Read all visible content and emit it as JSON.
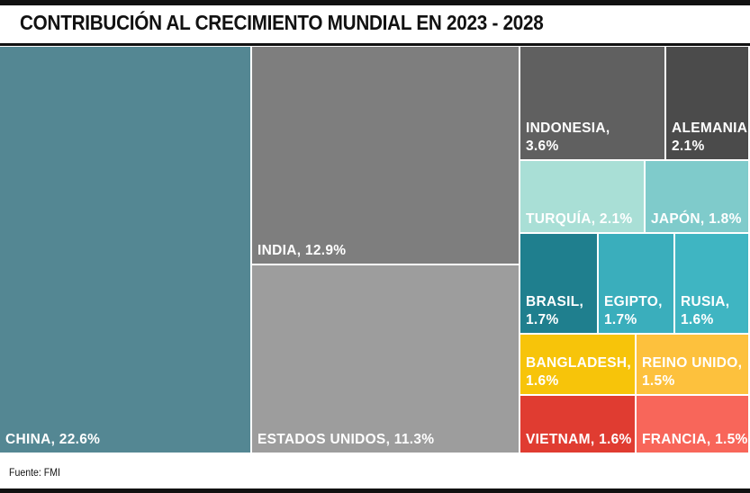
{
  "title": "CONTRIBUCIÓN AL CRECIMIENTO MUNDIAL EN 2023 - 2028",
  "source": "Fuente: FMI",
  "chart_data": {
    "type": "treemap",
    "title": "CONTRIBUCIÓN AL CRECIMIENTO MUNDIAL EN 2023 - 2028",
    "unit": "%",
    "items": [
      {
        "name": "CHINA",
        "value": 22.6,
        "label": "22.6%",
        "color": "#548793"
      },
      {
        "name": "INDIA",
        "value": 12.9,
        "label": "12.9%",
        "color": "#7e7e7e"
      },
      {
        "name": "ESTADOS UNIDOS",
        "value": 11.3,
        "label": "11.3%",
        "color": "#9d9d9d"
      },
      {
        "name": "INDONESIA",
        "value": 3.6,
        "label": "3.6%",
        "color": "#606060"
      },
      {
        "name": "ALEMANIA",
        "value": 2.1,
        "label": "2.1%",
        "color": "#4b4b4b"
      },
      {
        "name": "TURQUÍA",
        "value": 2.1,
        "label": "2.1%",
        "color": "#a9dfd6"
      },
      {
        "name": "JAPÓN",
        "value": 1.8,
        "label": "1.8%",
        "color": "#7fcbcb"
      },
      {
        "name": "BRASIL",
        "value": 1.7,
        "label": "1.7%",
        "color": "#1f7f8e"
      },
      {
        "name": "EGIPTO",
        "value": 1.7,
        "label": "1.7%",
        "color": "#3aaebc"
      },
      {
        "name": "RUSIA",
        "value": 1.6,
        "label": "1.6%",
        "color": "#3fb5c2"
      },
      {
        "name": "BANGLADESH",
        "value": 1.6,
        "label": "1.6%",
        "color": "#f7c40a"
      },
      {
        "name": "REINO UNIDO",
        "value": 1.5,
        "label": "1.5%",
        "color": "#fdc13d"
      },
      {
        "name": "VIETNAM",
        "value": 1.6,
        "label": "1.6%",
        "color": "#e03c31"
      },
      {
        "name": "FRANCIA",
        "value": 1.5,
        "label": "1.5%",
        "color": "#f8665a"
      }
    ]
  }
}
